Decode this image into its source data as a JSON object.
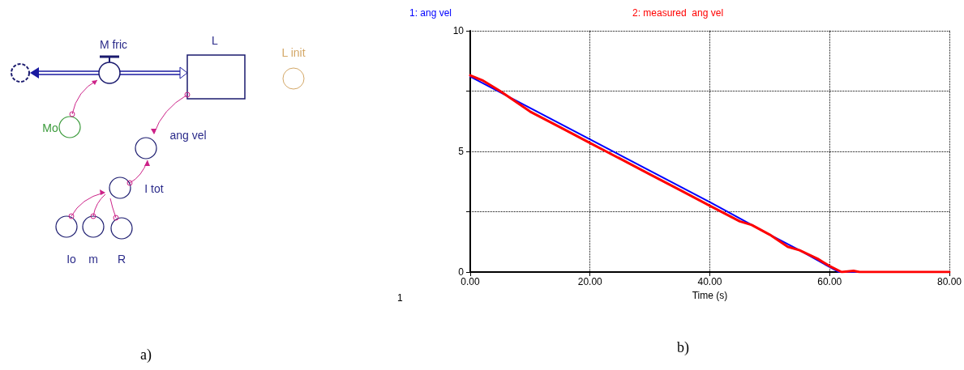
{
  "chart_data": [
    {
      "type": "other",
      "annotations": [
        "M fric",
        "L",
        "L init",
        "Mo",
        "ang vel",
        "I tot",
        "Io",
        "m",
        "R",
        "a)"
      ]
    },
    {
      "type": "line",
      "xlabel": "Time (s)",
      "legend": "top",
      "grid": true,
      "marker": "none",
      "line_style": "solid",
      "xlim": [
        0,
        80
      ],
      "xticks": [
        {
          "value": 0,
          "label": "0.00"
        },
        {
          "value": 20,
          "label": "20.00"
        },
        {
          "value": 40,
          "label": "40.00"
        },
        {
          "value": 60,
          "label": "60.00"
        },
        {
          "value": 80,
          "label": "80.00"
        }
      ],
      "ylim": [
        0,
        10
      ],
      "yticks": [
        0,
        {
          "value": 2.5,
          "label": null
        },
        5,
        {
          "value": 7.5,
          "label": null
        },
        10
      ],
      "annotations": [
        "1",
        "b)"
      ],
      "series": [
        {
          "name": "1: ang vel",
          "color": "#0000ff",
          "x": [
            0,
            10,
            20,
            30,
            40,
            50,
            55,
            61.5,
            80
          ],
          "values": [
            8.1,
            6.8,
            5.5,
            4.2,
            2.9,
            1.55,
            0.9,
            0,
            0
          ]
        },
        {
          "name": "2: measured  ang vel",
          "color": "#ff0000",
          "x": [
            0,
            2,
            5,
            10,
            15,
            20,
            25,
            30,
            35,
            40,
            45,
            47,
            50,
            53,
            55,
            58,
            60,
            62,
            64,
            65,
            80
          ],
          "values": [
            8.15,
            7.95,
            7.5,
            6.65,
            6.0,
            5.35,
            4.7,
            4.05,
            3.4,
            2.75,
            2.1,
            1.95,
            1.55,
            1.05,
            0.9,
            0.55,
            0.25,
            0,
            0.05,
            0,
            0
          ]
        }
      ]
    }
  ]
}
